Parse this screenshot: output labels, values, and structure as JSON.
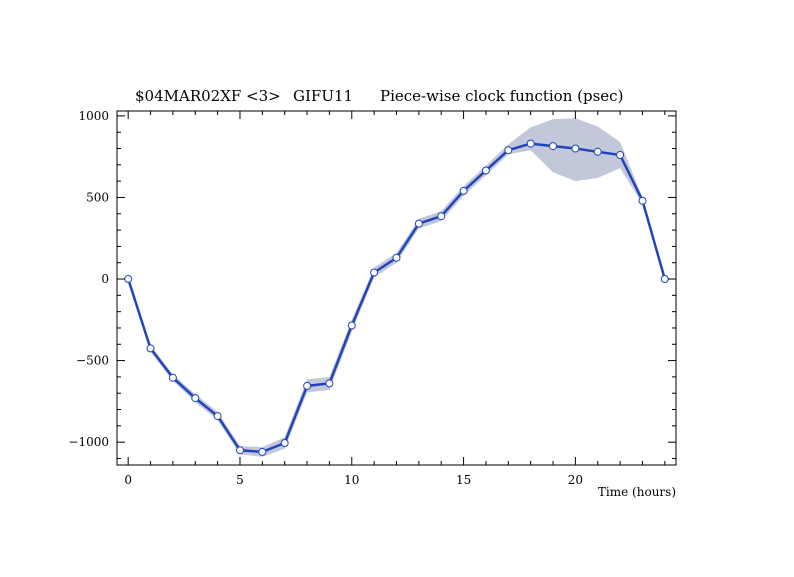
{
  "chart_data": {
    "type": "line",
    "title_parts": [
      "$04MAR02XF <3>",
      "GIFU11",
      "Piece-wise clock function (psec)"
    ],
    "xlabel": "Time (hours)",
    "ylabel": "",
    "xlim": [
      -0.5,
      24.5
    ],
    "ylim": [
      -1140,
      1030
    ],
    "xticks": [
      0,
      5,
      10,
      15,
      20
    ],
    "yticks": [
      -1000,
      -500,
      0,
      500,
      1000
    ],
    "x": [
      0,
      1,
      2,
      3,
      4,
      5,
      6,
      7,
      8,
      9,
      10,
      11,
      12,
      13,
      14,
      15,
      16,
      17,
      18,
      19,
      20,
      21,
      22,
      23,
      24
    ],
    "series": [
      {
        "values": [
          0,
          -425,
          -605,
          -730,
          -840,
          -1050,
          -1060,
          -1005,
          -655,
          -640,
          -285,
          40,
          130,
          340,
          385,
          540,
          665,
          790,
          830,
          815,
          800,
          780,
          760,
          480,
          0
        ],
        "err_lower": [
          0,
          20,
          20,
          25,
          25,
          25,
          30,
          35,
          40,
          40,
          35,
          30,
          30,
          30,
          30,
          30,
          30,
          25,
          40,
          160,
          200,
          160,
          80,
          20,
          0
        ],
        "err_upper": [
          0,
          20,
          20,
          25,
          25,
          25,
          30,
          35,
          40,
          40,
          35,
          30,
          30,
          30,
          30,
          30,
          30,
          35,
          100,
          165,
          185,
          155,
          80,
          20,
          0
        ]
      }
    ],
    "colors": {
      "line": "#2244bb",
      "band": "#c2c7d9",
      "marker_fill": "#ffffff"
    },
    "grid": false
  }
}
